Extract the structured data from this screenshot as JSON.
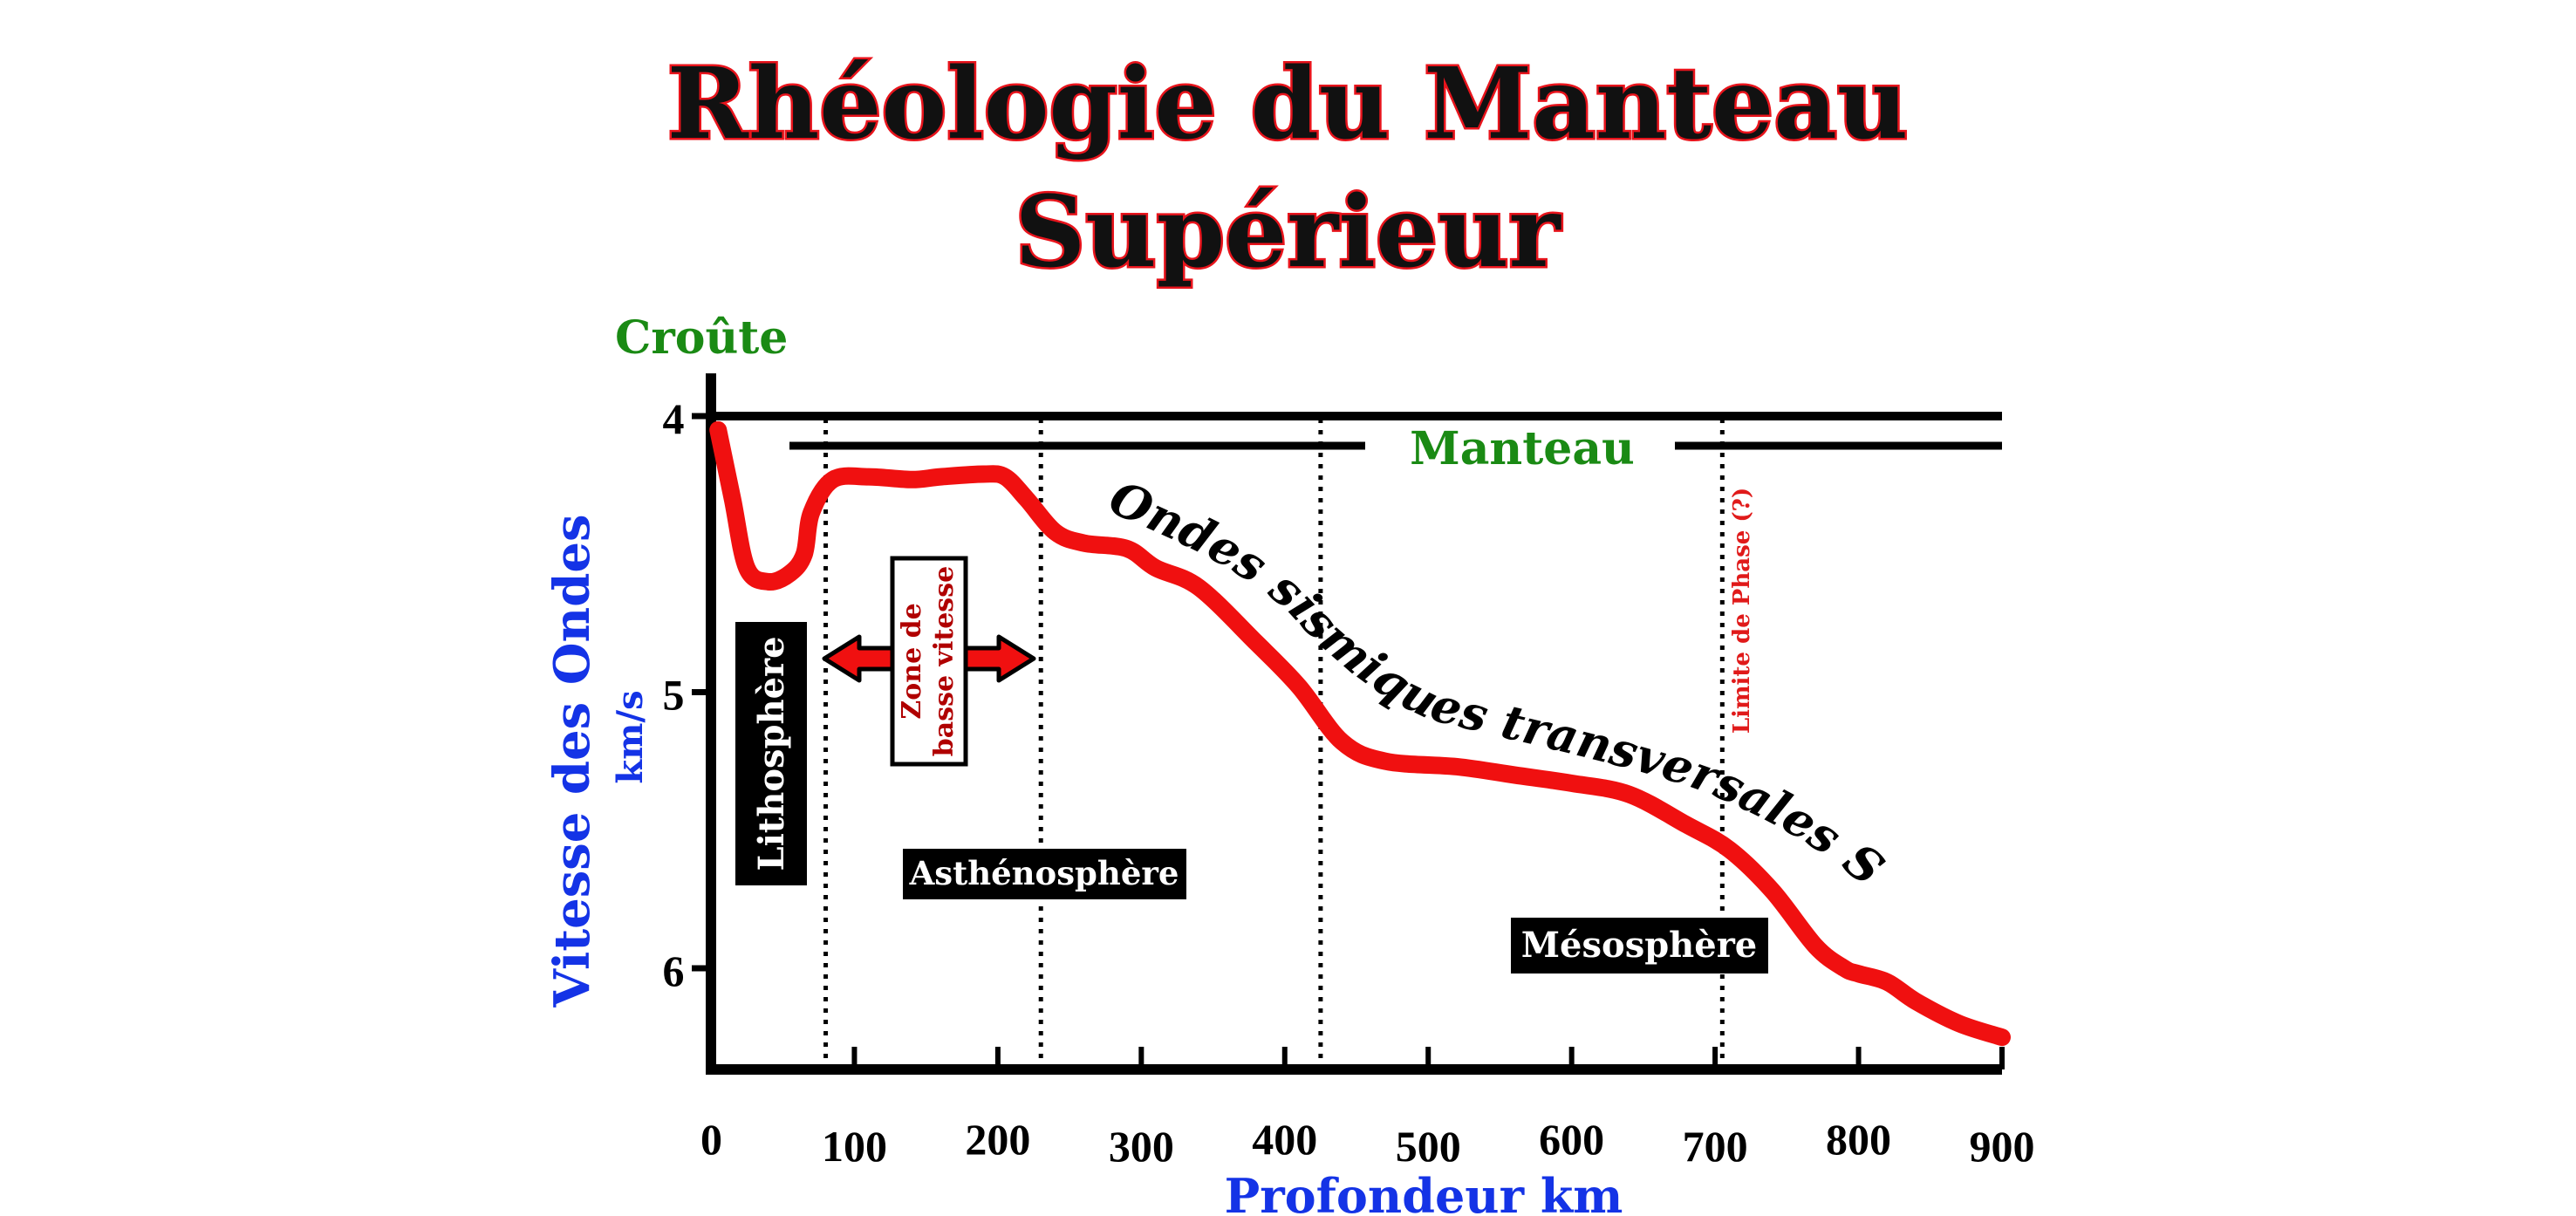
{
  "title": {
    "line1": "Rhéologie du Manteau",
    "line2": "Supérieur"
  },
  "labels": {
    "croute": "Croûte",
    "manteau": "Manteau",
    "lithosphere": "Lithosphère",
    "zone_line1": "Zone de",
    "zone_line2": "basse vitesse",
    "asthenosphere": "Asthénosphère",
    "mesosphere": "Mésosphère",
    "limite_phase": "Limite de Phase (?)",
    "curve": "Ondes sismiques transversales S"
  },
  "colors": {
    "curve": "#f01010",
    "title_outline": "#e8141c",
    "axis_title": "#1433e6",
    "layer_label": "#1a8a14",
    "zone_text": "#b00000",
    "phase_text": "#e01a1a",
    "box_fill": "#000000"
  },
  "chart_data": {
    "type": "line",
    "title": "Rhéologie du Manteau Supérieur",
    "xlabel": "Profondeur km",
    "ylabel": "Vitesse des Ondes",
    "ylabel_unit": "km/s",
    "xlim": [
      0,
      900
    ],
    "ylim": [
      4,
      6.4
    ],
    "y_inverted": true,
    "x_ticks": [
      0,
      100,
      200,
      300,
      400,
      500,
      600,
      700,
      800,
      900
    ],
    "y_ticks": [
      4,
      5,
      6
    ],
    "boundaries_km": [
      80,
      230,
      425,
      705
    ],
    "series": [
      {
        "name": "Ondes sismiques transversales S",
        "x": [
          5,
          15,
          25,
          40,
          55,
          65,
          70,
          85,
          110,
          140,
          160,
          190,
          205,
          220,
          240,
          260,
          290,
          310,
          340,
          380,
          410,
          440,
          470,
          520,
          560,
          600,
          640,
          680,
          710,
          740,
          770,
          790,
          800,
          820,
          840,
          870,
          900
        ],
        "y": [
          4.05,
          4.3,
          4.55,
          4.6,
          4.57,
          4.5,
          4.35,
          4.23,
          4.22,
          4.23,
          4.22,
          4.21,
          4.22,
          4.3,
          4.42,
          4.46,
          4.48,
          4.55,
          4.62,
          4.82,
          4.98,
          5.18,
          5.25,
          5.27,
          5.3,
          5.33,
          5.37,
          5.48,
          5.57,
          5.72,
          5.92,
          6.0,
          6.02,
          6.05,
          6.12,
          6.2,
          6.25
        ]
      }
    ]
  }
}
